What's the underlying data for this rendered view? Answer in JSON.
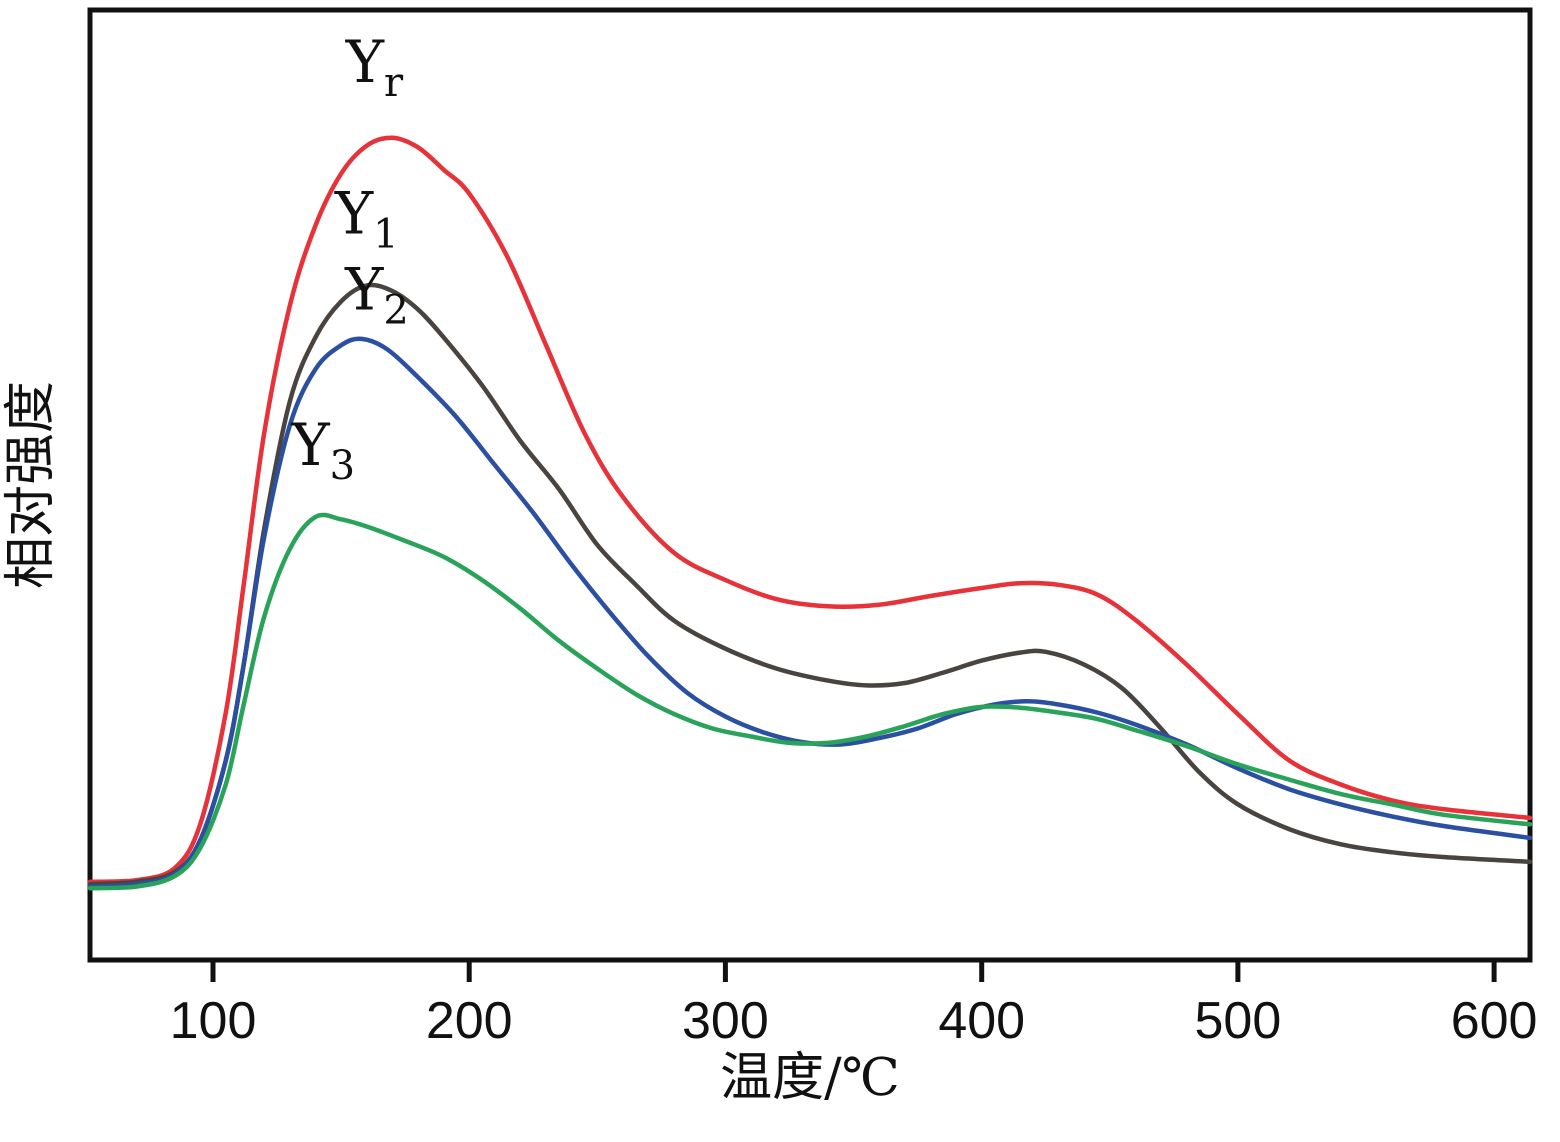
{
  "chart_data": {
    "type": "line",
    "title": "",
    "xlabel": "温度/℃",
    "ylabel": "相对强度",
    "xlim": [
      52,
      614
    ],
    "ylim": [
      -7,
      112
    ],
    "x_ticks": [
      100,
      200,
      300,
      400,
      500,
      600
    ],
    "y_ticks": [],
    "grid": false,
    "legend_position": "inline-annotations",
    "axis_color": "#111111",
    "series": [
      {
        "name": "Yr",
        "label_main": "Y",
        "label_sub": "r",
        "color": "#e63238",
        "label_pos": {
          "x": 163,
          "y": 103
        },
        "points": [
          [
            52,
            2.8
          ],
          [
            70,
            3.0
          ],
          [
            85,
            4.5
          ],
          [
            95,
            10
          ],
          [
            105,
            24
          ],
          [
            112,
            40
          ],
          [
            120,
            59
          ],
          [
            130,
            75
          ],
          [
            140,
            85
          ],
          [
            150,
            91.5
          ],
          [
            160,
            95
          ],
          [
            170,
            96
          ],
          [
            180,
            94.8
          ],
          [
            190,
            92
          ],
          [
            200,
            89
          ],
          [
            215,
            81
          ],
          [
            230,
            70
          ],
          [
            245,
            59
          ],
          [
            260,
            51
          ],
          [
            280,
            44
          ],
          [
            300,
            40.6
          ],
          [
            320,
            38.2
          ],
          [
            340,
            37.3
          ],
          [
            360,
            37.5
          ],
          [
            380,
            38.6
          ],
          [
            400,
            39.6
          ],
          [
            415,
            40.2
          ],
          [
            430,
            40
          ],
          [
            445,
            38.8
          ],
          [
            460,
            35.6
          ],
          [
            480,
            30
          ],
          [
            500,
            23.8
          ],
          [
            520,
            18
          ],
          [
            540,
            15
          ],
          [
            560,
            13
          ],
          [
            580,
            11.9
          ],
          [
            614,
            10.8
          ]
        ]
      },
      {
        "name": "Y1",
        "label_main": "Y",
        "label_sub": "1",
        "color": "#4a4441",
        "label_pos": {
          "x": 160,
          "y": 84
        },
        "points": [
          [
            52,
            2.5
          ],
          [
            70,
            2.8
          ],
          [
            85,
            4.0
          ],
          [
            95,
            8
          ],
          [
            105,
            18
          ],
          [
            112,
            30
          ],
          [
            120,
            47
          ],
          [
            130,
            63
          ],
          [
            140,
            71
          ],
          [
            150,
            75.5
          ],
          [
            160,
            77.5
          ],
          [
            170,
            76.8
          ],
          [
            180,
            74.5
          ],
          [
            190,
            71
          ],
          [
            205,
            65
          ],
          [
            220,
            58
          ],
          [
            235,
            52
          ],
          [
            250,
            45
          ],
          [
            265,
            40
          ],
          [
            280,
            35.5
          ],
          [
            300,
            32
          ],
          [
            320,
            29.5
          ],
          [
            340,
            28
          ],
          [
            355,
            27.4
          ],
          [
            370,
            27.7
          ],
          [
            385,
            29
          ],
          [
            400,
            30.5
          ],
          [
            415,
            31.5
          ],
          [
            425,
            31.6
          ],
          [
            440,
            30
          ],
          [
            455,
            27
          ],
          [
            470,
            22
          ],
          [
            485,
            16.5
          ],
          [
            500,
            12.5
          ],
          [
            520,
            9.4
          ],
          [
            540,
            7.5
          ],
          [
            560,
            6.5
          ],
          [
            580,
            5.9
          ],
          [
            614,
            5.3
          ]
        ]
      },
      {
        "name": "Y2",
        "label_main": "Y",
        "label_sub": "2",
        "color": "#2b4fa1",
        "label_pos": {
          "x": 164,
          "y": 74.5
        },
        "points": [
          [
            52,
            2.2
          ],
          [
            70,
            2.5
          ],
          [
            85,
            3.8
          ],
          [
            95,
            8
          ],
          [
            105,
            18
          ],
          [
            112,
            30
          ],
          [
            120,
            46
          ],
          [
            130,
            60
          ],
          [
            140,
            67
          ],
          [
            150,
            70
          ],
          [
            158,
            70.8
          ],
          [
            168,
            69.5
          ],
          [
            180,
            66
          ],
          [
            195,
            61
          ],
          [
            210,
            55
          ],
          [
            225,
            49
          ],
          [
            240,
            42.5
          ],
          [
            255,
            36.5
          ],
          [
            270,
            31
          ],
          [
            285,
            26.5
          ],
          [
            300,
            23.5
          ],
          [
            315,
            21.5
          ],
          [
            330,
            20.3
          ],
          [
            345,
            20
          ],
          [
            360,
            20.8
          ],
          [
            375,
            22
          ],
          [
            390,
            23.8
          ],
          [
            405,
            25
          ],
          [
            418,
            25.4
          ],
          [
            430,
            25
          ],
          [
            445,
            24
          ],
          [
            460,
            22.5
          ],
          [
            480,
            20
          ],
          [
            500,
            17
          ],
          [
            520,
            14.4
          ],
          [
            540,
            12.5
          ],
          [
            560,
            11
          ],
          [
            580,
            9.8
          ],
          [
            614,
            8.3
          ]
        ]
      },
      {
        "name": "Y3",
        "label_main": "Y",
        "label_sub": "3",
        "color": "#2aa35a",
        "label_pos": {
          "x": 143,
          "y": 55
        },
        "points": [
          [
            52,
            2.0
          ],
          [
            70,
            2.2
          ],
          [
            85,
            3.5
          ],
          [
            95,
            7
          ],
          [
            105,
            15
          ],
          [
            112,
            25
          ],
          [
            120,
            36
          ],
          [
            130,
            44.5
          ],
          [
            140,
            48.5
          ],
          [
            150,
            48.2
          ],
          [
            160,
            47.3
          ],
          [
            175,
            45.5
          ],
          [
            190,
            43.5
          ],
          [
            205,
            40.6
          ],
          [
            220,
            37
          ],
          [
            235,
            33
          ],
          [
            250,
            29.5
          ],
          [
            265,
            26.3
          ],
          [
            280,
            23.8
          ],
          [
            295,
            22
          ],
          [
            310,
            21
          ],
          [
            325,
            20.2
          ],
          [
            340,
            20.2
          ],
          [
            355,
            21
          ],
          [
            370,
            22.3
          ],
          [
            385,
            23.8
          ],
          [
            400,
            24.7
          ],
          [
            415,
            24.6
          ],
          [
            430,
            24
          ],
          [
            445,
            23.2
          ],
          [
            460,
            21.8
          ],
          [
            480,
            19.8
          ],
          [
            500,
            17.5
          ],
          [
            520,
            15.6
          ],
          [
            540,
            13.8
          ],
          [
            560,
            12.5
          ],
          [
            580,
            11.2
          ],
          [
            614,
            10
          ]
        ]
      }
    ]
  }
}
